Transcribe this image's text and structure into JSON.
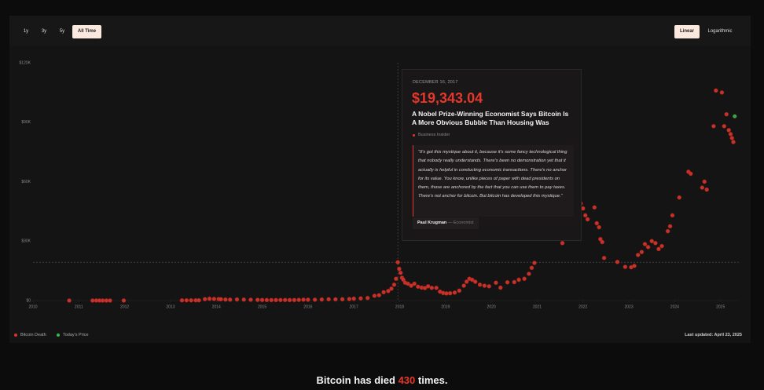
{
  "controls": {
    "ranges": [
      "1y",
      "3y",
      "5y",
      "All Time"
    ],
    "scales": [
      "Linear",
      "Logarithmic"
    ]
  },
  "chart_data": {
    "type": "scatter",
    "xlim": [
      2010,
      2025.4
    ],
    "xticks": [
      2010,
      2011,
      2012,
      2013,
      2014,
      2015,
      2016,
      2017,
      2018,
      2019,
      2020,
      2021,
      2022,
      2023,
      2024,
      2025
    ],
    "ylim": [
      0,
      120000
    ],
    "yticks": [
      {
        "value": 0,
        "label": "$0"
      },
      {
        "value": 30000,
        "label": "$30K"
      },
      {
        "value": 60000,
        "label": "$60K"
      },
      {
        "value": 90000,
        "label": "$90K"
      },
      {
        "value": 120000,
        "label": "$120K"
      }
    ],
    "grid": false,
    "series": [
      {
        "name": "Bitcoin Death",
        "color": "#d9352b",
        "x": [
          2010.79,
          2011.3,
          2011.38,
          2011.45,
          2011.52,
          2011.6,
          2011.68,
          2011.98,
          2013.25,
          2013.35,
          2013.45,
          2013.55,
          2013.62,
          2013.75,
          2013.85,
          2013.95,
          2014.05,
          2014.1,
          2014.2,
          2014.3,
          2014.45,
          2014.6,
          2014.75,
          2014.9,
          2015.0,
          2015.1,
          2015.2,
          2015.3,
          2015.4,
          2015.5,
          2015.6,
          2015.7,
          2015.8,
          2015.9,
          2016.0,
          2016.15,
          2016.3,
          2016.45,
          2016.6,
          2016.75,
          2016.9,
          2017.0,
          2017.15,
          2017.3,
          2017.45,
          2017.55,
          2017.65,
          2017.75,
          2017.82,
          2017.88,
          2017.92,
          2017.96,
          2017.99,
          2018.02,
          2018.05,
          2018.08,
          2018.12,
          2018.18,
          2018.25,
          2018.32,
          2018.4,
          2018.48,
          2018.55,
          2018.62,
          2018.7,
          2018.8,
          2018.88,
          2018.95,
          2019.02,
          2019.1,
          2019.2,
          2019.3,
          2019.4,
          2019.46,
          2019.52,
          2019.58,
          2019.65,
          2019.75,
          2019.85,
          2019.95,
          2020.1,
          2020.2,
          2020.35,
          2020.5,
          2020.6,
          2020.72,
          2020.82,
          2020.88,
          2020.94,
          2021.55,
          2021.95,
          2022.0,
          2022.05,
          2022.1,
          2022.25,
          2022.3,
          2022.35,
          2022.38,
          2022.42,
          2022.46,
          2022.75,
          2022.92,
          2023.05,
          2023.12,
          2023.2,
          2023.28,
          2023.35,
          2023.42,
          2023.5,
          2023.58,
          2023.65,
          2023.72,
          2023.85,
          2023.9,
          2023.95,
          2024.1,
          2024.3,
          2024.35,
          2024.6,
          2024.65,
          2024.7,
          2024.85,
          2024.9,
          2025.03,
          2025.08,
          2025.13,
          2025.18,
          2025.22,
          2025.25,
          2025.28
        ],
        "values": [
          0,
          10,
          15,
          12,
          8,
          5,
          4,
          5,
          100,
          110,
          90,
          120,
          130,
          700,
          900,
          800,
          750,
          650,
          500,
          450,
          550,
          480,
          400,
          350,
          280,
          260,
          240,
          250,
          260,
          280,
          240,
          260,
          330,
          430,
          420,
          420,
          520,
          650,
          610,
          640,
          750,
          950,
          1100,
          1300,
          2400,
          2700,
          4200,
          4800,
          6000,
          8000,
          11000,
          19343.04,
          16000,
          14000,
          11500,
          10500,
          9000,
          8500,
          7500,
          8500,
          7000,
          6500,
          6300,
          7200,
          6400,
          6400,
          4500,
          3800,
          3600,
          3700,
          4000,
          5000,
          7500,
          9500,
          11000,
          10500,
          9500,
          8000,
          7500,
          7200,
          9000,
          6500,
          9200,
          9300,
          10500,
          11000,
          13500,
          16500,
          19000,
          29000,
          49000,
          46500,
          43000,
          41000,
          47000,
          39000,
          37000,
          31000,
          29500,
          21500,
          19500,
          17000,
          16800,
          17500,
          23000,
          24500,
          28500,
          27000,
          30000,
          29000,
          26000,
          27500,
          35000,
          37500,
          43000,
          52000,
          65000,
          64000,
          57000,
          60000,
          56000,
          88000,
          106000,
          105000,
          88000,
          94000,
          86000,
          84000,
          82000,
          80000
        ]
      },
      {
        "name": "Today's Price",
        "color": "#2fbf4a",
        "x": [
          2025.31
        ],
        "values": [
          93000
        ]
      }
    ],
    "tooltip": {
      "date": "DECEMBER 16, 2017",
      "x": 2017.96,
      "value": 19343.04,
      "value_label": "$19,343.04",
      "headline": "A Nobel Prize-Winning Economist Says Bitcoin Is A More Obvious Bubble Than Housing Was",
      "source": "Business Insider",
      "quote": "“It's got this mystique about it, because it's some fancy technological thing that nobody really understands. There's been no demonstration yet that it actually is helpful in conducting economic transactions. There's no anchor for its value. You know, unlike pieces of paper with dead presidents on them, those are anchored by the fact that you can use them to pay taxes. There's not anchor for bitcoin. But bitcoin has developed this mystique.”",
      "author": "Paul Krugman",
      "role": "— Economist"
    }
  },
  "last_updated": "Last updated: April 23, 2025",
  "footer": {
    "before": "Bitcoin has died",
    "count": 430,
    "after": "times."
  }
}
